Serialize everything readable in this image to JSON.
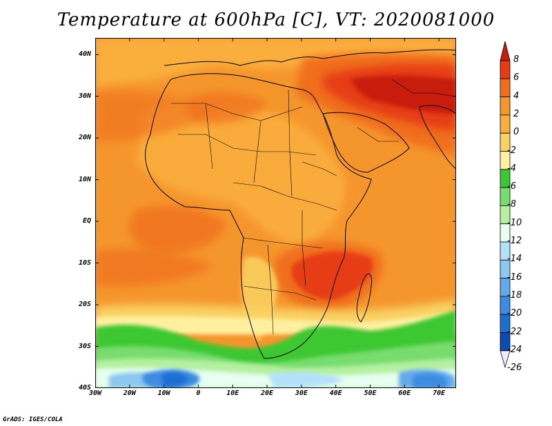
{
  "title": "Temperature at 600hPa [C], VT: 2020081000",
  "credit": "GrADS: IGES/COLA",
  "lat_labels": [
    "40N",
    "30N",
    "20N",
    "10N",
    "EQ",
    "10S",
    "20S",
    "30S",
    "40S"
  ],
  "lon_labels": [
    "30W",
    "20W",
    "10W",
    "0",
    "10E",
    "20E",
    "30E",
    "40E",
    "50E",
    "60E",
    "70E"
  ],
  "map_extent": {
    "lon_min": -30,
    "lon_max": 75,
    "lat_min": -40,
    "lat_max": 44
  },
  "colorbar": {
    "labels": [
      "8",
      "6",
      "4",
      "2",
      "0",
      "-2",
      "-4",
      "-6",
      "-8",
      "-10",
      "-12",
      "-14",
      "-16",
      "-18",
      "-20",
      "-22",
      "-24",
      "-26"
    ],
    "colors": [
      "#c81e0a",
      "#e63c14",
      "#f06e1e",
      "#f5962d",
      "#faaf3c",
      "#fad264",
      "#fff0a0",
      "#3cc832",
      "#78dc6e",
      "#b4f0a0",
      "#e6fff0",
      "#b4e1fa",
      "#8cc8f0",
      "#64aaeb",
      "#3c8ce1",
      "#1e6ed2",
      "#0a4bb4",
      "#00236e"
    ]
  }
}
